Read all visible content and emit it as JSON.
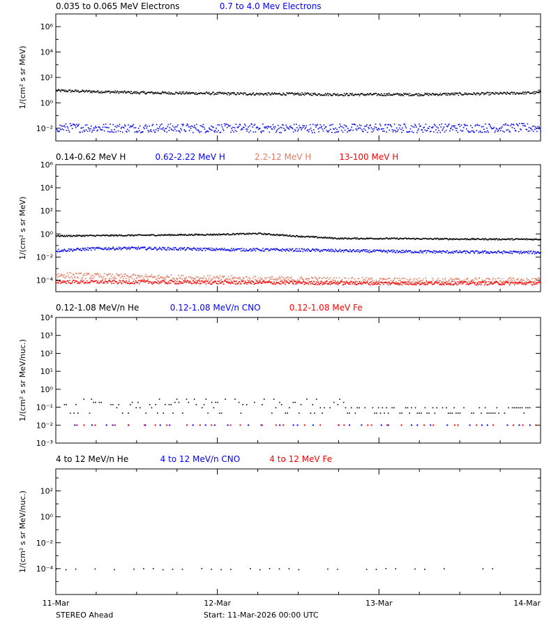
{
  "footer": {
    "spacecraft": "STEREO Ahead",
    "start": "Start: 11-Mar-2026 00:00 UTC"
  },
  "colors": {
    "black": "#000000",
    "blue": "#0000ff",
    "salmon": "#e07a5f",
    "red": "#ff0000"
  },
  "chart_data": [
    {
      "type": "scatter",
      "y_scale": "log",
      "ylim": [
        0.001,
        10000000
      ],
      "y_tick_exponents": [
        -2,
        0,
        2,
        4,
        6
      ],
      "ylabel": "1/(cm² s sr MeV)",
      "legend": [
        {
          "label": "0.035 to 0.065 MeV Electrons",
          "color": "#000000"
        },
        {
          "label": "0.7 to 4.0 Mev Electrons",
          "color": "#0000ff"
        }
      ],
      "series": [
        {
          "name": "0.035 to 0.065 MeV Electrons",
          "color": "#000000",
          "x": [
            0,
            0.25,
            0.5,
            0.75,
            1.0,
            1.25,
            1.5,
            1.75,
            2.0,
            2.25,
            2.5,
            2.75,
            3.0
          ],
          "y": [
            10,
            8.5,
            7,
            6.5,
            6,
            5.5,
            5.5,
            5,
            5,
            5,
            5.5,
            6,
            7
          ],
          "spread": 0.1
        },
        {
          "name": "0.7 to 4.0 Mev Electrons",
          "color": "#0000ff",
          "x": [
            0,
            1.0,
            2.0,
            3.0
          ],
          "y": [
            0.012,
            0.011,
            0.011,
            0.012
          ],
          "spread": 0.35
        }
      ]
    },
    {
      "type": "scatter",
      "y_scale": "log",
      "ylim": [
        1e-05,
        1000000
      ],
      "y_tick_exponents": [
        -4,
        -2,
        0,
        2,
        4,
        6
      ],
      "ylabel": "1/(cm² s sr MeV)",
      "legend": [
        {
          "label": "0.14-0.62 MeV H",
          "color": "#000000"
        },
        {
          "label": "0.62-2.22 MeV H",
          "color": "#0000ff"
        },
        {
          "label": "2.2-12 MeV H",
          "color": "#e07a5f"
        },
        {
          "label": "13-100 MeV H",
          "color": "#ff0000"
        }
      ],
      "series": [
        {
          "name": "0.14-0.62 MeV H",
          "color": "#000000",
          "x": [
            0,
            0.5,
            1.0,
            1.25,
            1.5,
            1.75,
            2.0,
            2.5,
            3.0
          ],
          "y": [
            0.75,
            0.85,
            1.0,
            1.2,
            0.7,
            0.45,
            0.45,
            0.4,
            0.38
          ],
          "spread": 0.06
        },
        {
          "name": "0.62-2.22 MeV H",
          "color": "#0000ff",
          "x": [
            0,
            0.25,
            0.5,
            1.0,
            1.5,
            2.0,
            2.5,
            3.0
          ],
          "y": [
            0.04,
            0.06,
            0.065,
            0.05,
            0.045,
            0.035,
            0.03,
            0.028
          ],
          "spread": 0.12
        },
        {
          "name": "2.2-12 MeV H",
          "color": "#e07a5f",
          "x": [
            0,
            0.5,
            1.0,
            2.0,
            3.0
          ],
          "y": [
            0.0003,
            0.0002,
            0.00015,
            0.0001,
            0.0001
          ],
          "spread": 0.25
        },
        {
          "name": "13-100 MeV H",
          "color": "#ff0000",
          "x": [
            0,
            1.0,
            2.0,
            3.0
          ],
          "y": [
            8e-05,
            7e-05,
            6e-05,
            6e-05
          ],
          "spread": 0.15
        }
      ]
    },
    {
      "type": "scatter",
      "y_scale": "log",
      "ylim": [
        0.001,
        10000
      ],
      "y_tick_exponents": [
        -3,
        -2,
        -1,
        0,
        1,
        2,
        3,
        4
      ],
      "ylabel": "1/(cm² s sr MeV/nuc.)",
      "legend": [
        {
          "label": "0.12-1.08 MeV/n He",
          "color": "#000000"
        },
        {
          "label": "0.12-1.08 MeV/n CNO",
          "color": "#0000ff"
        },
        {
          "label": "0.12-1.08 MeV Fe",
          "color": "#ff0000"
        }
      ],
      "series": [
        {
          "name": "0.12-1.08 MeV/n He",
          "color": "#000000",
          "x": [
            0.05,
            0.25,
            0.5,
            0.75,
            1.0,
            1.25,
            1.5,
            1.75,
            2.0,
            2.5,
            2.95
          ],
          "y": [
            0.05,
            0.12,
            0.2,
            0.15,
            0.18,
            0.12,
            0.08,
            0.06,
            0.05,
            0.05,
            0.05
          ],
          "spread": 0.45
        },
        {
          "name": "0.12-1.08 MeV/n CNO",
          "color": "#0000ff",
          "x": [
            0.05,
            1.0,
            2.0,
            2.95
          ],
          "y": [
            0.01,
            0.01,
            0.01,
            0.01
          ],
          "spread": 0.0
        },
        {
          "name": "0.12-1.08 MeV Fe",
          "color": "#ff0000",
          "x": [
            0.05,
            1.0,
            2.0,
            2.95
          ],
          "y": [
            0.01,
            0.01,
            0.01,
            0.01
          ],
          "spread": 0.0
        }
      ]
    },
    {
      "type": "scatter",
      "y_scale": "log",
      "ylim": [
        1e-06,
        5000
      ],
      "y_tick_exponents": [
        -4,
        -2,
        0,
        2
      ],
      "ylabel": "1/(cm² s sr MeV/nuc.)",
      "legend": [
        {
          "label": "4 to 12 MeV/n He",
          "color": "#000000"
        },
        {
          "label": "4 to 12 MeV/n CNO",
          "color": "#0000ff"
        },
        {
          "label": "4 to 12 MeV Fe",
          "color": "#ff0000"
        }
      ],
      "series": [
        {
          "name": "4 to 12 MeV/n He",
          "color": "#000000",
          "x": [
            0.0,
            2.9
          ],
          "y": [
            0.0001,
            0.0001
          ],
          "spread": 0.05
        }
      ]
    }
  ],
  "x_axis": {
    "ticks": [
      "11-Mar",
      "12-Mar",
      "13-Mar",
      "14-Mar"
    ],
    "range_days": [
      0,
      3
    ]
  }
}
